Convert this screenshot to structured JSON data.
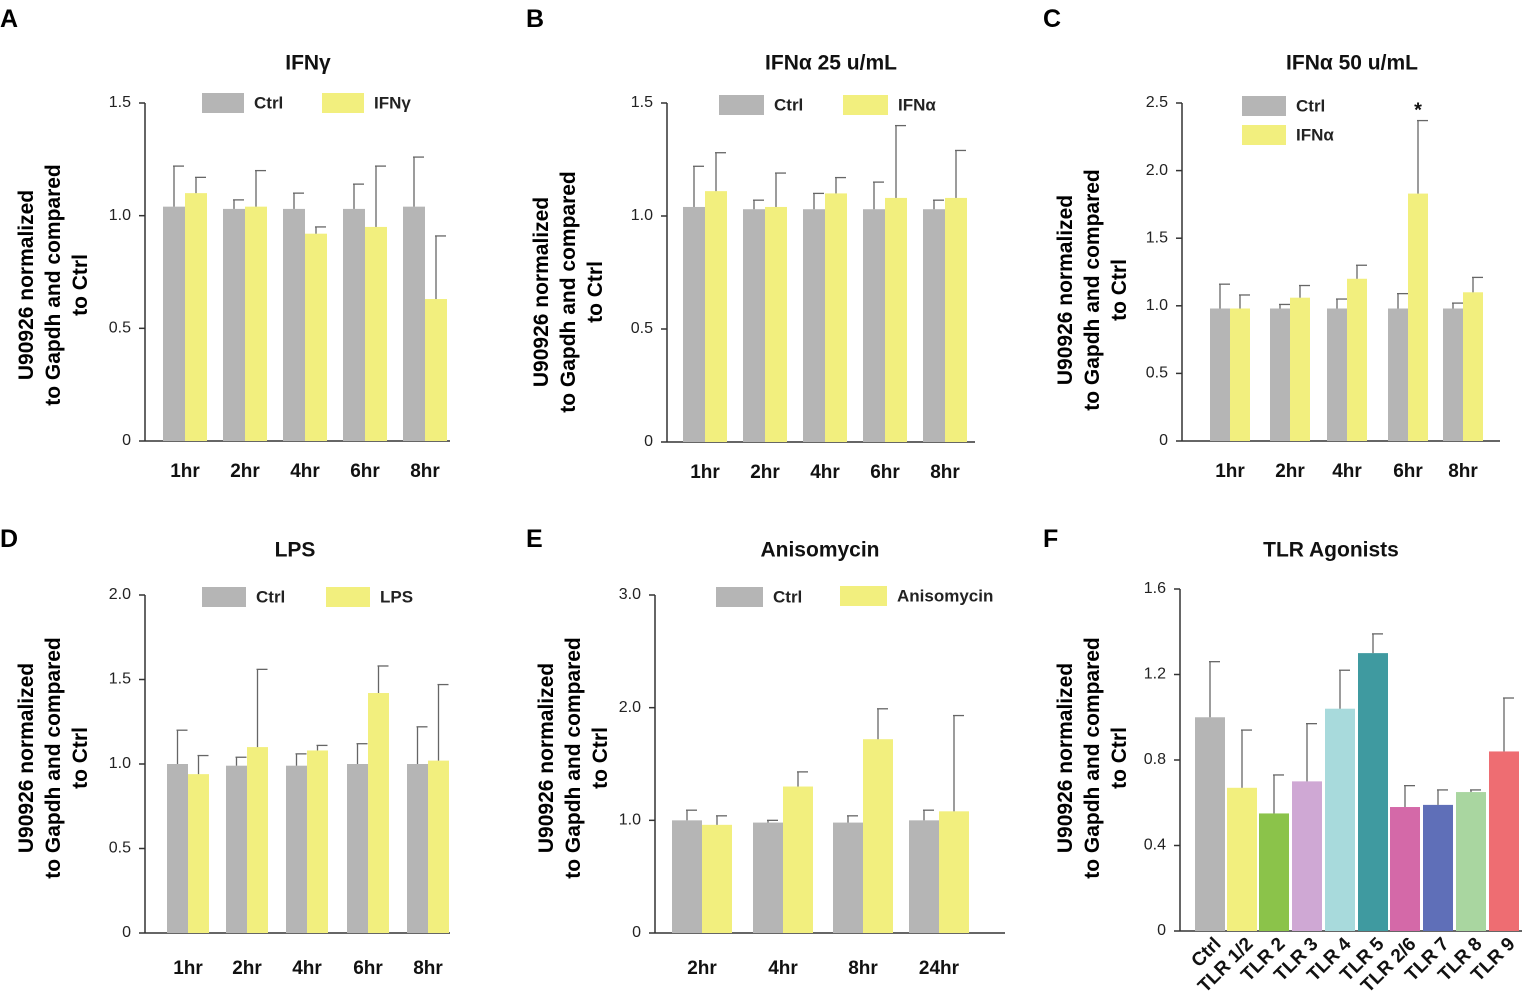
{
  "colors": {
    "ctrl": "#b5b5b5",
    "treated": "#f2ef7e",
    "tlr": [
      "#b5b5b5",
      "#f2ef7e",
      "#8bc34a",
      "#cfa8d4",
      "#a8dadc",
      "#3f9aa0",
      "#d469a8",
      "#5f6fb8",
      "#a9d6a0",
      "#ee6d72"
    ]
  },
  "chart_data": [
    {
      "panel": "A",
      "type": "bar",
      "title": "IFNγ",
      "ylabel": [
        "U90926 normalized",
        "to Gapdh and compared",
        "to Ctrl"
      ],
      "categories": [
        "1hr",
        "2hr",
        "4hr",
        "6hr",
        "8hr"
      ],
      "ylim": [
        0,
        1.5
      ],
      "yticks": [
        "0",
        "0.5",
        "1.0",
        "1.5"
      ],
      "ytick_values": [
        0,
        0.5,
        1.0,
        1.5
      ],
      "series": [
        {
          "name": "Ctrl",
          "values": [
            1.04,
            1.03,
            1.03,
            1.03,
            1.04
          ],
          "errors": [
            0.18,
            0.04,
            0.07,
            0.11,
            0.22
          ]
        },
        {
          "name": "IFNγ",
          "values": [
            1.1,
            1.04,
            0.92,
            0.95,
            0.63
          ],
          "errors": [
            0.07,
            0.16,
            0.03,
            0.27,
            0.28
          ]
        }
      ],
      "annotations": []
    },
    {
      "panel": "B",
      "type": "bar",
      "title": "IFNα 25 u/mL",
      "ylabel": [
        "U90926 normalized",
        "to Gapdh and compared",
        "to Ctrl"
      ],
      "categories": [
        "1hr",
        "2hr",
        "4hr",
        "6hr",
        "8hr"
      ],
      "ylim": [
        0,
        1.5
      ],
      "yticks": [
        "0",
        "0.5",
        "1.0",
        "1.5"
      ],
      "ytick_values": [
        0,
        0.5,
        1.0,
        1.5
      ],
      "series": [
        {
          "name": "Ctrl",
          "values": [
            1.04,
            1.03,
            1.03,
            1.03,
            1.03
          ],
          "errors": [
            0.18,
            0.04,
            0.07,
            0.12,
            0.04
          ]
        },
        {
          "name": "IFNα",
          "values": [
            1.11,
            1.04,
            1.1,
            1.08,
            1.08
          ],
          "errors": [
            0.17,
            0.15,
            0.07,
            0.32,
            0.21
          ]
        }
      ],
      "annotations": []
    },
    {
      "panel": "C",
      "type": "bar",
      "title": "IFNα 50 u/mL",
      "ylabel": [
        "U90926 normalized",
        "to Gapdh and compared",
        "to Ctrl"
      ],
      "categories": [
        "1hr",
        "2hr",
        "4hr",
        "6hr",
        "8hr"
      ],
      "ylim": [
        0,
        2.5
      ],
      "yticks": [
        "0",
        "0.5",
        "1.0",
        "1.5",
        "2.0",
        "2.5"
      ],
      "ytick_values": [
        0,
        0.5,
        1.0,
        1.5,
        2.0,
        2.5
      ],
      "series": [
        {
          "name": "Ctrl",
          "values": [
            0.98,
            0.98,
            0.98,
            0.98,
            0.98
          ],
          "errors": [
            0.18,
            0.03,
            0.07,
            0.11,
            0.04
          ]
        },
        {
          "name": "IFNα",
          "values": [
            0.98,
            1.06,
            1.2,
            1.83,
            1.1
          ],
          "errors": [
            0.1,
            0.09,
            0.1,
            0.54,
            0.11
          ]
        }
      ],
      "annotations": [
        {
          "text": "*",
          "category": "6hr"
        }
      ]
    },
    {
      "panel": "D",
      "type": "bar",
      "title": "LPS",
      "ylabel": [
        "U90926 normalized",
        "to Gapdh and compared",
        "to Ctrl"
      ],
      "categories": [
        "1hr",
        "2hr",
        "4hr",
        "6hr",
        "8hr"
      ],
      "ylim": [
        0,
        2.0
      ],
      "yticks": [
        "0",
        "0.5",
        "1.0",
        "1.5",
        "2.0"
      ],
      "ytick_values": [
        0,
        0.5,
        1.0,
        1.5,
        2.0
      ],
      "series": [
        {
          "name": "Ctrl",
          "values": [
            1.0,
            0.99,
            0.99,
            1.0,
            1.0
          ],
          "errors": [
            0.2,
            0.05,
            0.07,
            0.12,
            0.22
          ]
        },
        {
          "name": "LPS",
          "values": [
            0.94,
            1.1,
            1.08,
            1.42,
            1.02
          ],
          "errors": [
            0.11,
            0.46,
            0.03,
            0.16,
            0.45
          ]
        }
      ],
      "annotations": []
    },
    {
      "panel": "E",
      "type": "bar",
      "title": "Anisomycin",
      "ylabel": [
        "U90926 normalized",
        "to Gapdh and compared",
        "to Ctrl"
      ],
      "categories": [
        "2hr",
        "4hr",
        "8hr",
        "24hr"
      ],
      "ylim": [
        0,
        3.0
      ],
      "yticks": [
        "0",
        "1.0",
        "2.0",
        "3.0"
      ],
      "ytick_values": [
        0,
        1.0,
        2.0,
        3.0
      ],
      "series": [
        {
          "name": "Ctrl",
          "values": [
            1.0,
            0.98,
            0.98,
            1.0
          ],
          "errors": [
            0.09,
            0.02,
            0.06,
            0.09
          ]
        },
        {
          "name": "Anisomycin",
          "values": [
            0.96,
            1.3,
            1.72,
            1.08
          ],
          "errors": [
            0.08,
            0.13,
            0.27,
            0.85
          ]
        }
      ],
      "annotations": []
    },
    {
      "panel": "F",
      "type": "bar",
      "title": "TLR Agonists",
      "ylabel": [
        "U90926 normalized",
        "to Gapdh and compared",
        "to Ctrl"
      ],
      "categories": [
        "Ctrl",
        "TLR 1/2",
        "TLR 2",
        "TLR 3",
        "TLR 4",
        "TLR 5",
        "TLR 2/6",
        "TLR 7",
        "TLR 8",
        "TLR 9"
      ],
      "ylim": [
        0,
        1.6
      ],
      "yticks": [
        "0",
        "0.4",
        "0.8",
        "1.2",
        "1.6"
      ],
      "ytick_values": [
        0,
        0.4,
        0.8,
        1.2,
        1.6
      ],
      "values": [
        1.0,
        0.67,
        0.55,
        0.7,
        1.04,
        1.3,
        0.58,
        0.59,
        0.65,
        0.84
      ],
      "errors": [
        0.26,
        0.27,
        0.18,
        0.27,
        0.18,
        0.09,
        0.1,
        0.07,
        0.01,
        0.25
      ],
      "annotations": []
    }
  ]
}
